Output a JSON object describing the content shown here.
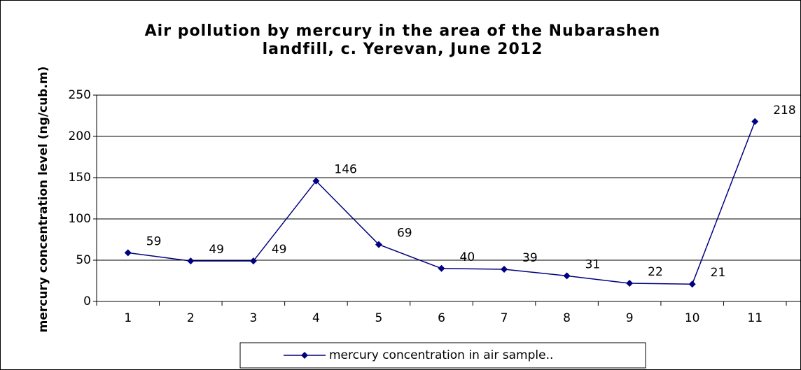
{
  "chart_data": {
    "type": "line",
    "title": [
      "Air pollution by mercury in the area of the Nubarashen",
      "landfill, c. Yerevan, June 2012"
    ],
    "y_label": "mercury concentration level (ng/cub.m)",
    "categories": [
      "1",
      "2",
      "3",
      "4",
      "5",
      "6",
      "7",
      "8",
      "9",
      "10",
      "11"
    ],
    "series": [
      {
        "name": "mercury concentration in air sample..",
        "color": "#000080",
        "values": [
          59,
          49,
          49,
          146,
          69,
          40,
          39,
          31,
          22,
          21,
          218
        ]
      }
    ],
    "ylim": [
      0,
      250
    ],
    "yticks": [
      0,
      50,
      100,
      150,
      200,
      250
    ],
    "grid": true,
    "legend": "bottom"
  }
}
